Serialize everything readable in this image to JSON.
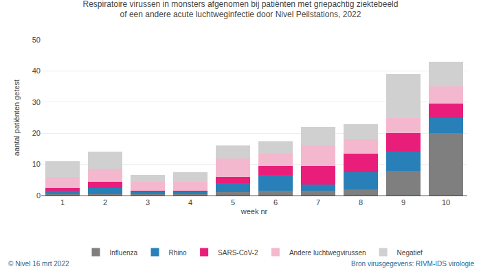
{
  "chart_data": {
    "type": "bar",
    "stacked": true,
    "title": "Respiratoire virussen in monsters afgenomen bij patiënten met griepachtig ziektebeeld",
    "subtitle": "of een andere acute luchtweginfectie door Nivel Peilstations, 2022",
    "xlabel": "week nr",
    "ylabel": "aantal patiënten getest",
    "categories": [
      "1",
      "2",
      "3",
      "4",
      "5",
      "6",
      "7",
      "8",
      "9",
      "10"
    ],
    "series": [
      {
        "name": "Influenza",
        "color": "#7f7f7f",
        "values": [
          0.5,
          0.5,
          0.5,
          0.5,
          1.0,
          1.5,
          1.5,
          2.0,
          8.0,
          20.0
        ]
      },
      {
        "name": "Rhino",
        "color": "#2980b9",
        "values": [
          1.0,
          2.0,
          0.5,
          0.5,
          3.0,
          5.0,
          2.0,
          5.5,
          6.0,
          5.0
        ]
      },
      {
        "name": "SARS-CoV-2",
        "color": "#e91e7a",
        "values": [
          1.0,
          2.0,
          0.5,
          0.5,
          2.0,
          3.0,
          6.0,
          6.0,
          6.0,
          4.5
        ]
      },
      {
        "name": "Andere luchtwegvirussen",
        "color": "#f4b8ce",
        "values": [
          3.5,
          4.0,
          3.0,
          3.0,
          6.0,
          4.0,
          6.5,
          4.5,
          5.0,
          5.5
        ]
      },
      {
        "name": "Negatief",
        "color": "#d0d0d0",
        "values": [
          5.0,
          5.5,
          2.0,
          3.0,
          4.0,
          4.0,
          6.0,
          5.0,
          14.0,
          8.0
        ]
      }
    ],
    "ylim": [
      0,
      50
    ],
    "yticks": [
      0,
      10,
      20,
      30,
      40,
      50
    ],
    "grid": true,
    "legend": "bottom",
    "annotations": [
      "© Nivel 16 mrt 2022",
      "Bron virusgegevens: RIVM-IDS virologie"
    ]
  }
}
